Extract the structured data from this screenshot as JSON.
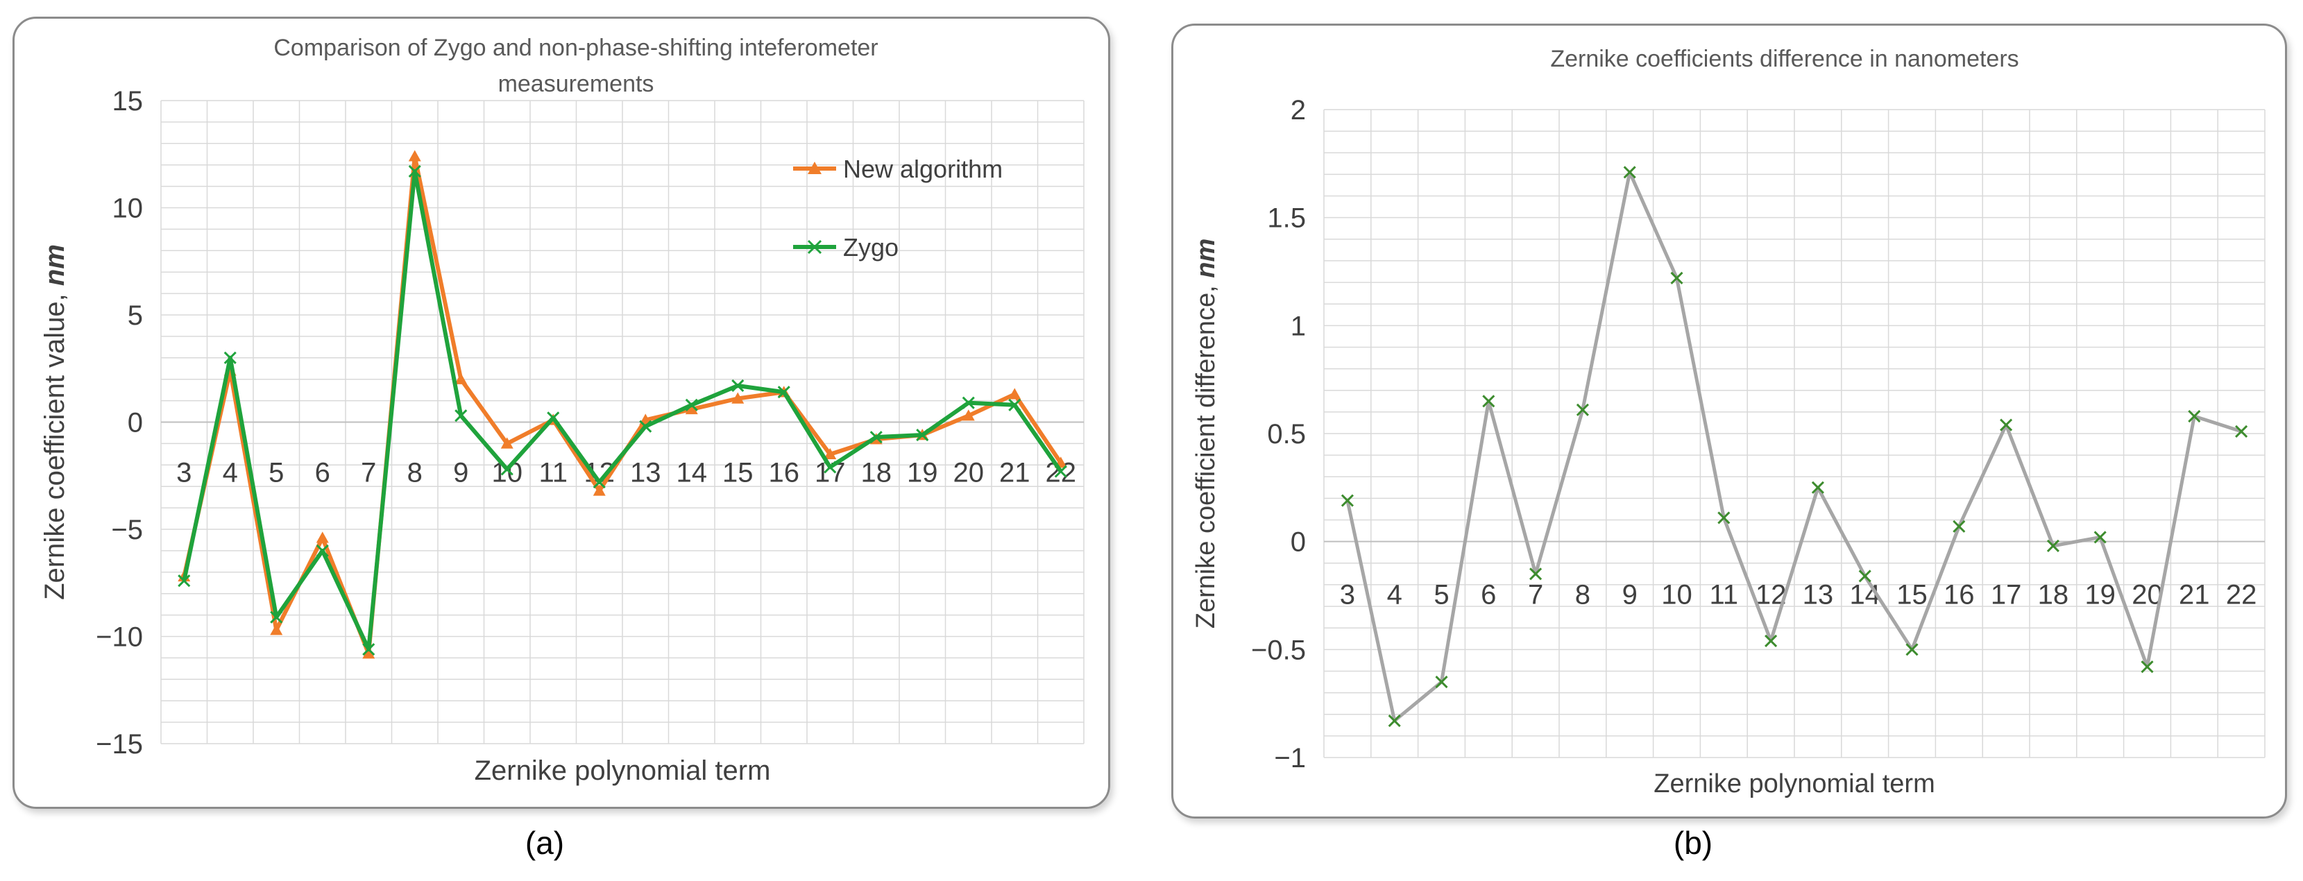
{
  "captions": [
    "(a)",
    "(b)"
  ],
  "colors": {
    "new_algorithm": "#f07d2a",
    "zygo": "#1fa33c",
    "difference_line": "#a6a6a6",
    "difference_marker": "#3d8c2e",
    "grid": "#d9d9d9"
  },
  "chart_data": [
    {
      "type": "line",
      "title_lines": [
        "Comparison of Zygo and non-phase-shifting inteferometer",
        "measurements"
      ],
      "xlabel": "Zernike polynomial term",
      "ylabel_main": "Zernike coefficient value, ",
      "ylabel_emph": "nm",
      "categories": [
        "3",
        "4",
        "5",
        "6",
        "7",
        "8",
        "9",
        "10",
        "11",
        "12",
        "13",
        "14",
        "15",
        "16",
        "17",
        "18",
        "19",
        "20",
        "21",
        "22"
      ],
      "yticks": [
        "−15",
        "−10",
        "−5",
        "0",
        "5",
        "10",
        "15"
      ],
      "ylim": [
        -15,
        15
      ],
      "minor_grid_step": 1,
      "legend_position": "top-right",
      "series": [
        {
          "name": "New algorithm",
          "marker": "triangle",
          "values": [
            -7.2,
            2.4,
            -9.7,
            -5.4,
            -10.8,
            12.4,
            2.0,
            -1.0,
            0.1,
            -3.2,
            0.1,
            0.6,
            1.1,
            1.4,
            -1.5,
            -0.8,
            -0.6,
            0.3,
            1.3,
            -1.9
          ]
        },
        {
          "name": "Zygo",
          "marker": "x",
          "values": [
            -7.4,
            3.0,
            -9.1,
            -6.0,
            -10.6,
            11.7,
            0.3,
            -2.2,
            0.2,
            -2.8,
            -0.2,
            0.8,
            1.7,
            1.4,
            -2.1,
            -0.7,
            -0.6,
            0.9,
            0.8,
            -2.3
          ]
        }
      ]
    },
    {
      "type": "line",
      "title": "Zernike coefficients difference in nanometers",
      "xlabel": "Zernike polynomial term",
      "ylabel_main": "Zernike coefficient difference, ",
      "ylabel_emph": "nm",
      "categories": [
        "3",
        "4",
        "5",
        "6",
        "7",
        "8",
        "9",
        "10",
        "11",
        "12",
        "13",
        "14",
        "15",
        "16",
        "17",
        "18",
        "19",
        "20",
        "21",
        "22"
      ],
      "yticks": [
        "−1",
        "−0.5",
        "0",
        "0.5",
        "1",
        "1.5",
        "2"
      ],
      "ylim": [
        -1,
        2
      ],
      "minor_grid_step": 0.1,
      "series": [
        {
          "marker": "x",
          "values": [
            0.19,
            -0.83,
            -0.65,
            0.65,
            -0.15,
            0.61,
            1.71,
            1.22,
            0.11,
            -0.46,
            0.25,
            -0.16,
            -0.5,
            0.07,
            0.54,
            -0.02,
            0.02,
            -0.58,
            0.58,
            0.51
          ]
        }
      ]
    }
  ]
}
